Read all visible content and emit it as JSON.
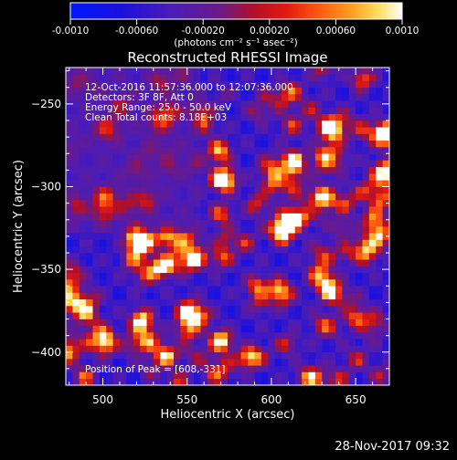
{
  "chart_data": {
    "type": "heatmap",
    "title": "Reconstructed RHESSI Image",
    "xlabel": "Heliocentric X (arcsec)",
    "ylabel": "Heliocentric Y (arcsec)",
    "xlim": [
      478,
      670
    ],
    "ylim": [
      -420,
      -228
    ],
    "x_ticks": [
      500,
      550,
      600,
      650
    ],
    "y_ticks": [
      -250,
      -300,
      -350,
      -400
    ],
    "annotations": [
      "12-Oct-2016 11:57:36.000 to 12:07:36.000",
      "Detectors: 3F 8F, Att 0",
      "Energy Range: 25.0 - 50.0 keV",
      "Clean    Total counts: 8.18E+03"
    ],
    "peak_label": "Position of Peak = [608,-331]",
    "peak": [
      608,
      -331
    ],
    "colorbar": {
      "min": -0.001,
      "max": 0.001,
      "tick_values": [
        -0.001,
        -0.0006,
        -0.0002,
        0.0002,
        0.0006,
        0.001
      ],
      "tick_labels": [
        "-0.0010",
        "-0.00060",
        "-0.00020",
        "0.00020",
        "0.00060",
        "0.0010"
      ],
      "unit_label": "(photons cm⁻² s⁻¹ asec⁻²)",
      "colormap": "blue-purple-red-orange-yellow-white"
    },
    "grid": false,
    "pixel_size_arcsec": 4
  },
  "footer": {
    "timestamp": "28-Nov-2017 09:32"
  }
}
